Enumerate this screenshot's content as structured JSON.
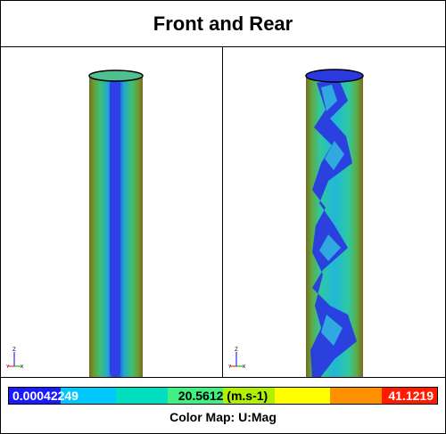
{
  "title": "Front and Rear",
  "legend": {
    "min_label": "0.00042249",
    "mid_label": "20.5612 (m.s-1)",
    "max_label": "41.1219",
    "caption": "Color Map: U:Mag",
    "colors": [
      "#1a1aff",
      "#00c8ff",
      "#00e0c0",
      "#40f080",
      "#b0f000",
      "#ffff00",
      "#ff9000",
      "#ff1a00"
    ]
  },
  "axes": {
    "z_label": "Z",
    "y_label": "Y",
    "x_label": "X"
  }
}
